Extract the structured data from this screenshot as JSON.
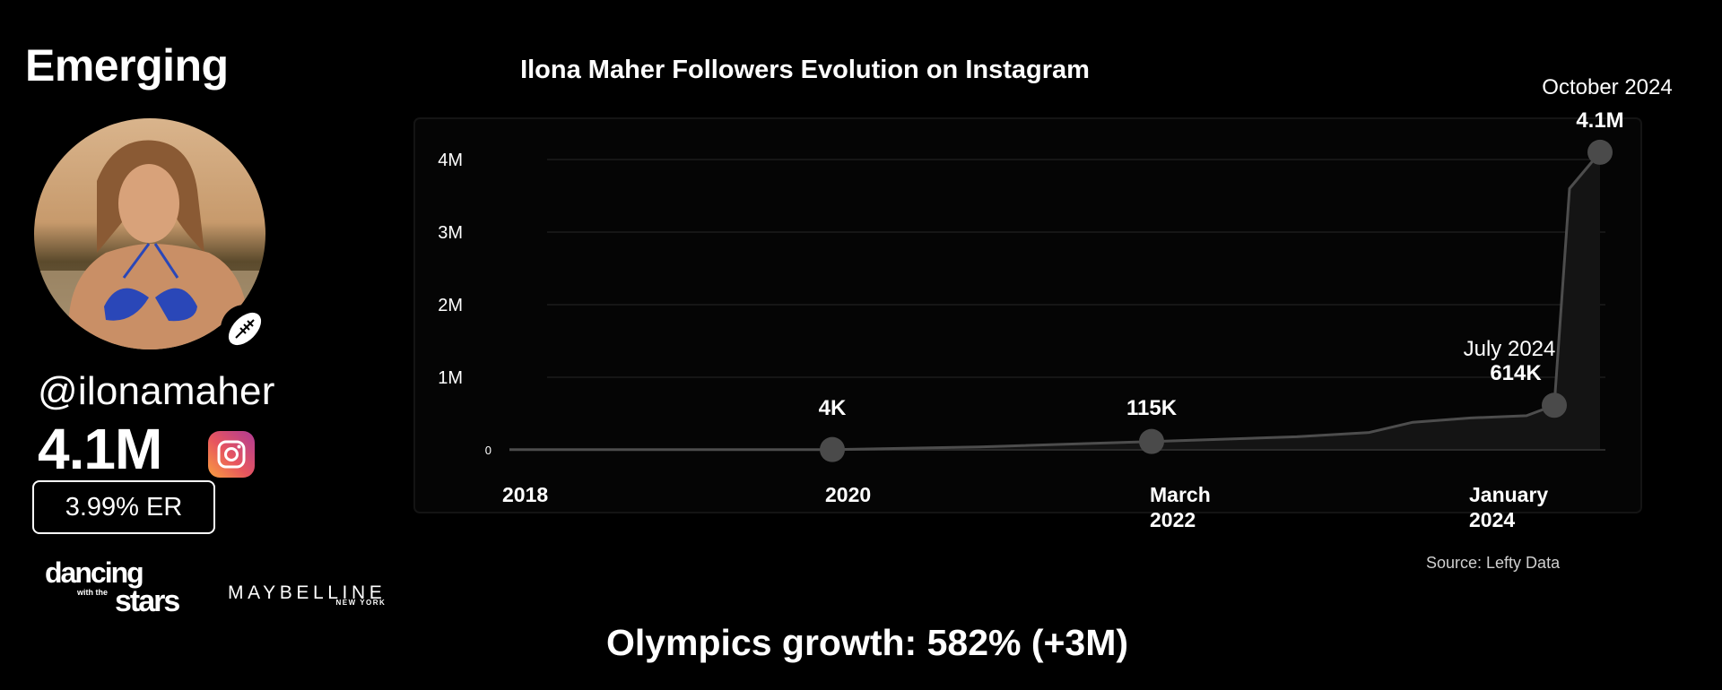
{
  "profile": {
    "category": "Emerging",
    "handle": "@ilonamaher",
    "followers": "4.1M",
    "engagement_rate": "3.99% ER",
    "platform_icon": "instagram-icon",
    "sport_icon": "rugby-ball-icon"
  },
  "brands": {
    "dwts_line1": "dancing",
    "dwts_line2": "with the",
    "dwts_line3": "stars",
    "maybelline": "MAYBELLINE",
    "maybelline_sub": "NEW YORK"
  },
  "source": "Source: Lefty Data",
  "headline": "Olympics growth: 582% (+3M)",
  "colors": {
    "background": "#000000",
    "line": "#555555",
    "marker": "#4a4a4a",
    "grid": "#1f1f1f",
    "instagram_gradient": [
      "#f9a03f",
      "#e8565e",
      "#b03b95"
    ]
  },
  "chart_data": {
    "type": "line",
    "title": "Ilona Maher Followers Evolution on Instagram",
    "xlabel": "",
    "ylabel": "",
    "ylim": [
      0,
      4500000
    ],
    "grid": true,
    "y_ticks": [
      {
        "value": 0,
        "label": "0"
      },
      {
        "value": 1000000,
        "label": "1M"
      },
      {
        "value": 2000000,
        "label": "2M"
      },
      {
        "value": 3000000,
        "label": "3M"
      },
      {
        "value": 4000000,
        "label": "4M"
      }
    ],
    "x_ticks": [
      {
        "x": "2018-01",
        "label": [
          "2018"
        ]
      },
      {
        "x": "2020-01",
        "label": [
          "2020"
        ]
      },
      {
        "x": "2022-03",
        "label": [
          "March",
          "2022"
        ]
      },
      {
        "x": "2024-01",
        "label": [
          "January",
          "2024"
        ]
      }
    ],
    "series": [
      {
        "points": [
          {
            "x": "2018-01",
            "y": 2000
          },
          {
            "x": "2020-01",
            "y": 4000
          },
          {
            "x": "2021-01",
            "y": 40000
          },
          {
            "x": "2022-03",
            "y": 115000
          },
          {
            "x": "2023-01",
            "y": 180000
          },
          {
            "x": "2023-06",
            "y": 240000
          },
          {
            "x": "2023-09",
            "y": 380000
          },
          {
            "x": "2024-01",
            "y": 440000
          },
          {
            "x": "2024-05",
            "y": 470000
          },
          {
            "x": "2024-07",
            "y": 614000
          },
          {
            "x": "2024-08",
            "y": 3600000
          },
          {
            "x": "2024-10",
            "y": 4100000
          }
        ]
      }
    ],
    "annotations": [
      {
        "x": "2020-01",
        "y": 4000,
        "value": "4K",
        "date": ""
      },
      {
        "x": "2022-03",
        "y": 115000,
        "value": "115K",
        "date": ""
      },
      {
        "x": "2024-07",
        "y": 614000,
        "value": "614K",
        "date": "July 2024"
      },
      {
        "x": "2024-10",
        "y": 4100000,
        "value": "4.1M",
        "date": "October 2024"
      }
    ]
  }
}
